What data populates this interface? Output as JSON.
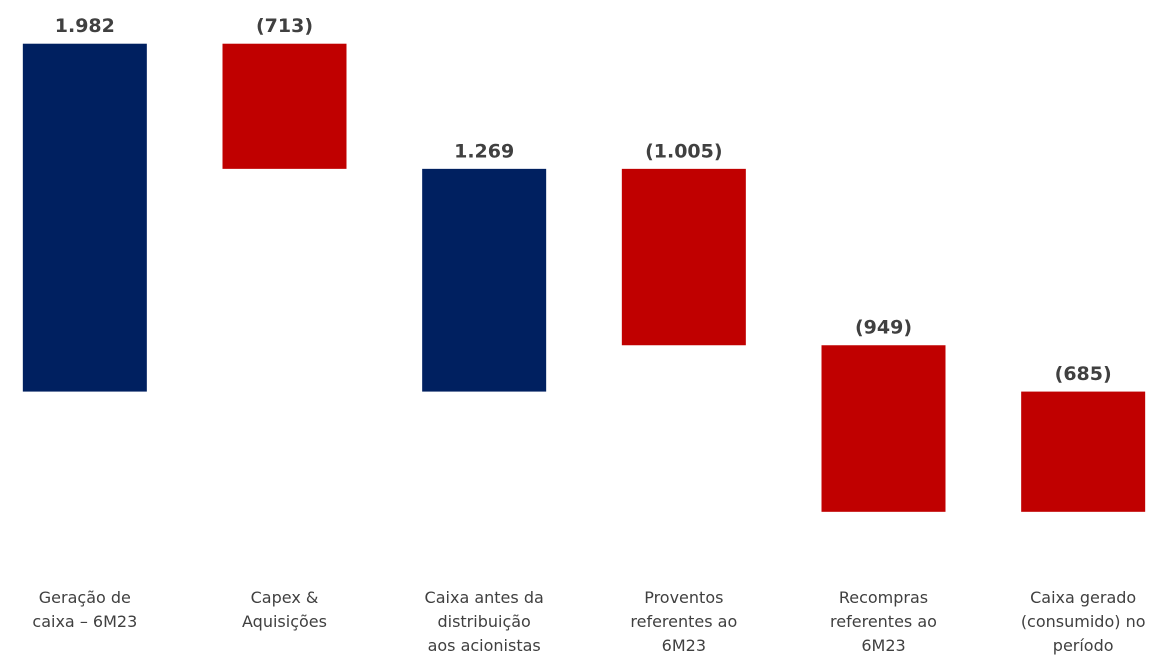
{
  "chart_data": {
    "type": "waterfall",
    "categories": [
      [
        "Geração de",
        "caixa – 6M23"
      ],
      [
        "Capex &",
        "Aquisições"
      ],
      [
        "Caixa antes da",
        "distribuição",
        "aos acionistas"
      ],
      [
        "Proventos",
        "referentes ao",
        "6M23"
      ],
      [
        "Recompras",
        "referentes ao",
        "6M23"
      ],
      [
        "Caixa gerado",
        "(consumido) no",
        "período"
      ]
    ],
    "measure": [
      "absolute",
      "relative",
      "total",
      "relative",
      "relative",
      "total"
    ],
    "values": [
      1982,
      -713,
      1269,
      -1005,
      -949,
      -685
    ],
    "value_labels": [
      "1.982",
      "(713)",
      "1.269",
      "(1.005)",
      "(949)",
      "(685)"
    ],
    "colors": [
      "#002060",
      "#c00000",
      "#002060",
      "#c00000",
      "#c00000",
      "#c00000"
    ],
    "ylim": [
      -800,
      2100
    ]
  }
}
